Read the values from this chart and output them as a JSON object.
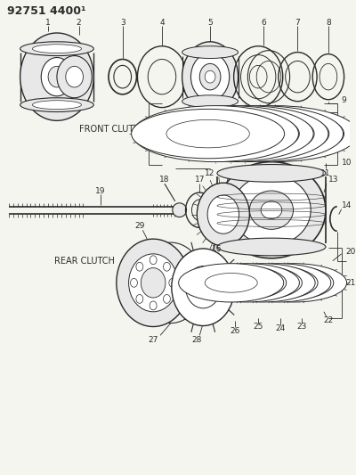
{
  "title": "92751 4400¹",
  "front_clutch_label": "FRONT CLUTCH",
  "rear_clutch_label": "REAR CLUTCH",
  "bg_color": "#f5f5f0",
  "line_color": "#2a2a2a",
  "gray_fill": "#c8c8c8",
  "light_gray": "#e8e8e8"
}
